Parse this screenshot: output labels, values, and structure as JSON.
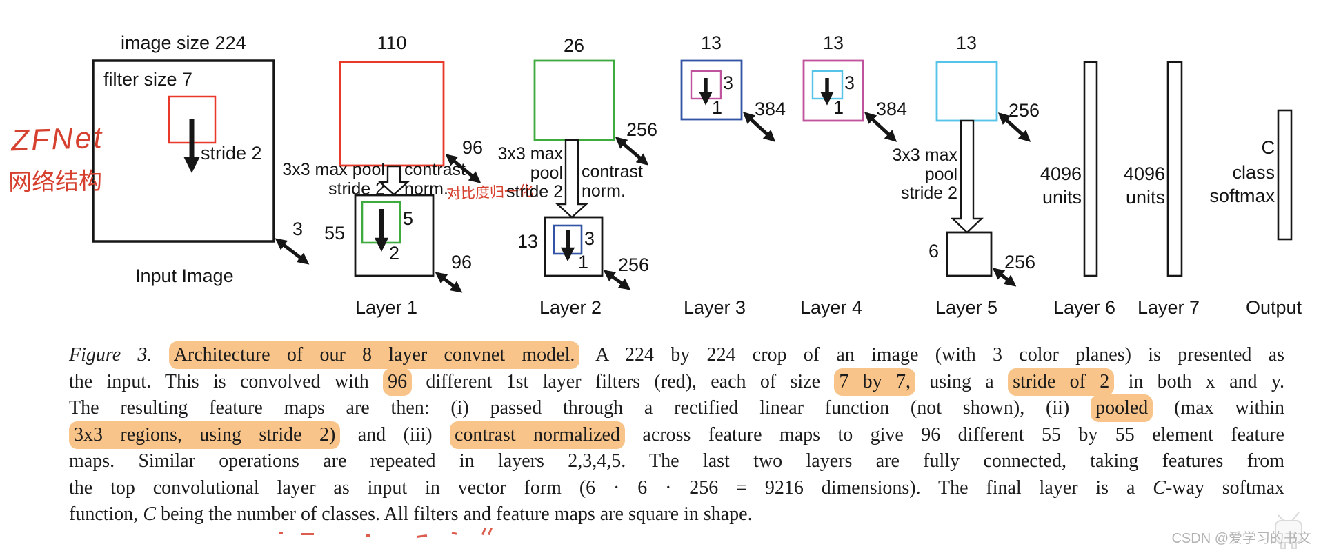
{
  "colors": {
    "red": "#e8392a",
    "green": "#3faa3d",
    "blue": "#3353a4",
    "magenta": "#c0549c",
    "cyan": "#56c3e8",
    "highlight": "#f8c489",
    "handwriting": "#d6402f"
  },
  "diagram": {
    "handwriting": {
      "title": "ZFNet",
      "subtitle": "网络结构",
      "contrast_note": "对比度归一化"
    },
    "input": {
      "image_size": "image size 224",
      "filter_size": "filter size 7",
      "stride": "stride 2",
      "depth": "3",
      "label": "Input Image"
    },
    "layer1": {
      "size": "110",
      "filters_top": "96",
      "pool_line1": "3x3 max pool",
      "pool_line2": "stride 2",
      "contrast_line1": "contrast",
      "contrast_line2": "norm.",
      "pooled_size": "55",
      "filter": "5",
      "stride": "2",
      "filters_bottom": "96",
      "label": "Layer 1"
    },
    "layer2": {
      "size": "26",
      "filters_top": "256",
      "pool_line1": "3x3 max",
      "pool_line2": "pool",
      "pool_line3": "stride 2",
      "contrast_line1": "contrast",
      "contrast_line2": "norm.",
      "pooled_size": "13",
      "filter": "3",
      "stride": "1",
      "filters_bottom": "256",
      "label": "Layer 2"
    },
    "layer3": {
      "size": "13",
      "filter": "3",
      "stride": "1",
      "filters": "384",
      "label": "Layer 3"
    },
    "layer4": {
      "size": "13",
      "filter": "3",
      "stride": "1",
      "filters": "384",
      "label": "Layer 4"
    },
    "layer5": {
      "size": "13",
      "filters_top": "256",
      "pool_line1": "3x3 max",
      "pool_line2": "pool",
      "pool_line3": "stride 2",
      "pooled_size": "6",
      "filters_bottom": "256",
      "label": "Layer 5"
    },
    "layer6": {
      "units_line1": "4096",
      "units_line2": "units",
      "label": "Layer 6"
    },
    "layer7": {
      "units_line1": "4096",
      "units_line2": "units",
      "label": "Layer 7"
    },
    "output": {
      "c": "C",
      "line2": "class",
      "line3": "softmax",
      "label": "Output"
    }
  },
  "caption": {
    "lines": [
      [
        {
          "t": "Figure 3. ",
          "it": true
        },
        {
          "t": "Architecture of our 8 layer convnet model.",
          "hl": true
        },
        {
          "t": " A 224 by 224 crop of an image (with 3 color planes) is presented as"
        }
      ],
      [
        {
          "t": "the input. This is convolved with "
        },
        {
          "t": "96",
          "hl": true
        },
        {
          "t": " different 1st layer filters (red), each of size "
        },
        {
          "t": "7 by 7,",
          "hl": true
        },
        {
          "t": " using a "
        },
        {
          "t": "stride of 2",
          "hl": true
        },
        {
          "t": " in both x and y."
        }
      ],
      [
        {
          "t": "The resulting feature maps are then: (i) passed through a rectified linear function (not shown), (ii) "
        },
        {
          "t": "pooled",
          "hl": true
        },
        {
          "t": " (max within"
        }
      ],
      [
        {
          "t": "3x3 regions, using stride 2)",
          "hl": true
        },
        {
          "t": " and (iii) "
        },
        {
          "t": "contrast normalized",
          "hl": true
        },
        {
          "t": " across feature maps to give 96 different 55 by 55 element feature"
        }
      ],
      [
        {
          "t": "maps. Similar operations are repeated in layers 2,3,4,5. The last two layers are fully connected, taking features from"
        }
      ],
      [
        {
          "t": "the top convolutional layer as input in vector form (6 · 6 · 256 = 9216 dimensions). The final layer is a "
        },
        {
          "t": "C",
          "it": true
        },
        {
          "t": "-way softmax"
        }
      ],
      [
        {
          "t": "function, "
        },
        {
          "t": "C",
          "it": true
        },
        {
          "t": " being the number of classes. All filters and feature maps are square in shape."
        }
      ]
    ]
  },
  "watermark": {
    "text": "CSDN @爱学习的书文"
  }
}
